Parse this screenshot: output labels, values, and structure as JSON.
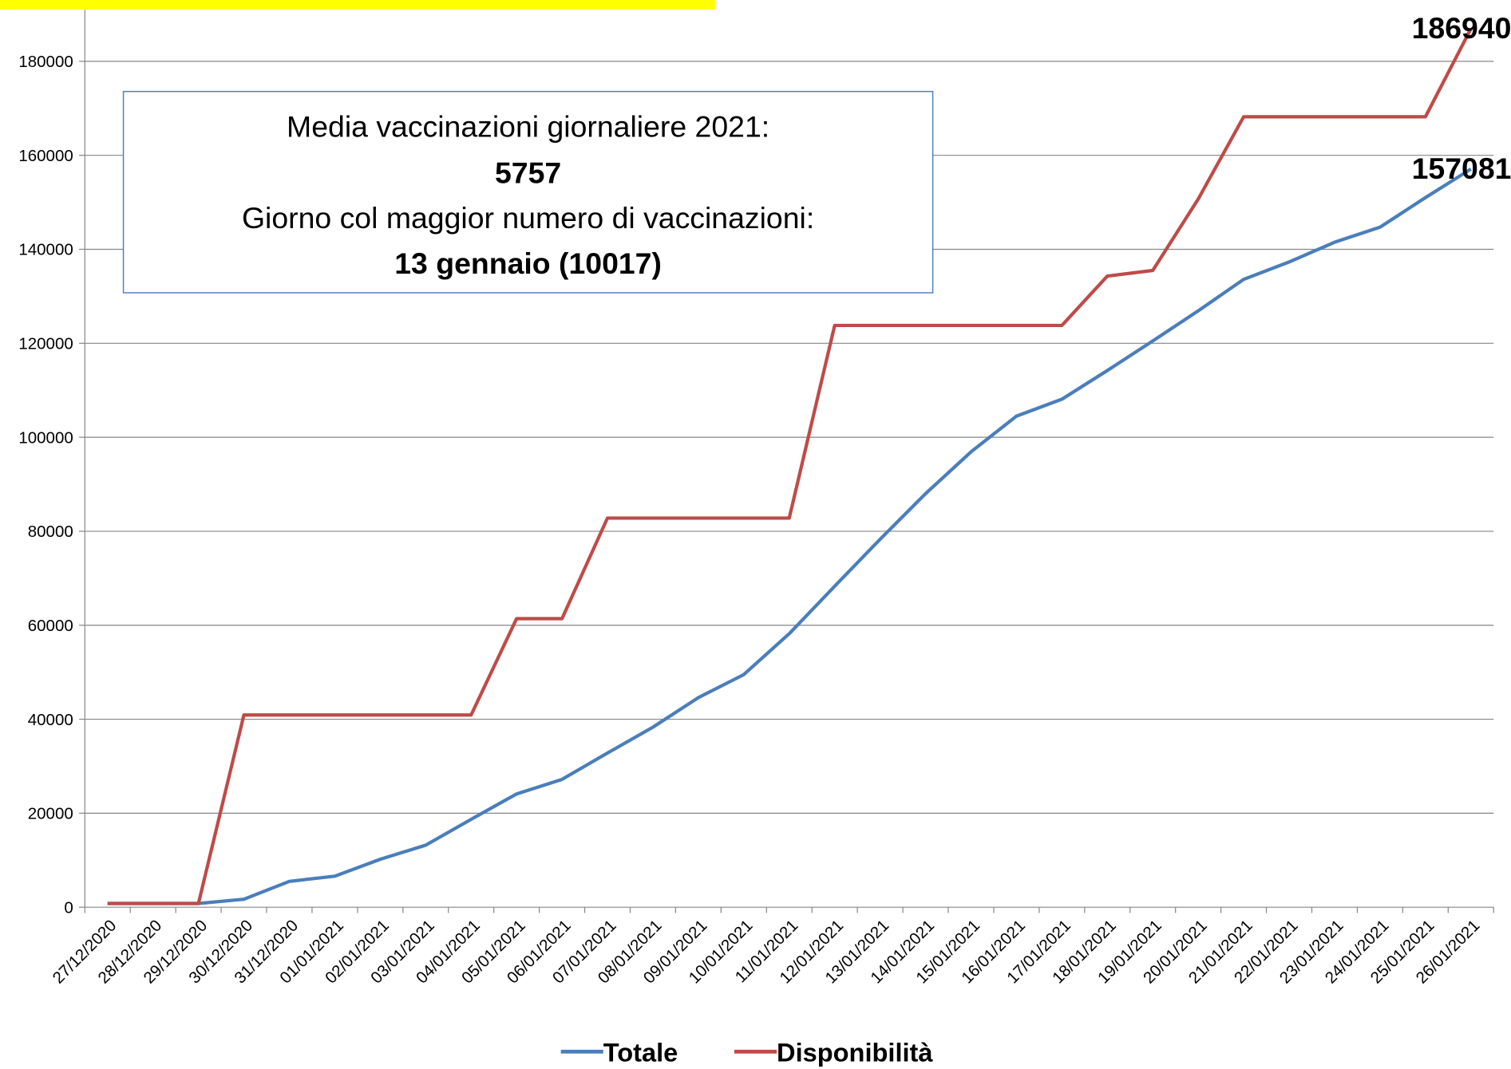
{
  "chart_data": {
    "type": "line",
    "categories": [
      "27/12/2020",
      "28/12/2020",
      "29/12/2020",
      "30/12/2020",
      "31/12/2020",
      "01/01/2021",
      "02/01/2021",
      "03/01/2021",
      "04/01/2021",
      "05/01/2021",
      "06/01/2021",
      "07/01/2021",
      "08/01/2021",
      "09/01/2021",
      "10/01/2021",
      "11/01/2021",
      "12/01/2021",
      "13/01/2021",
      "14/01/2021",
      "15/01/2021",
      "16/01/2021",
      "17/01/2021",
      "18/01/2021",
      "19/01/2021",
      "20/01/2021",
      "21/01/2021",
      "22/01/2021",
      "23/01/2021",
      "24/01/2021",
      "25/01/2021",
      "26/01/2021"
    ],
    "series": [
      {
        "name": "Totale",
        "color": "#4a7ebb",
        "values": [
          800,
          800,
          800,
          1700,
          5500,
          6600,
          10200,
          13200,
          18700,
          24100,
          27200,
          32800,
          38300,
          44600,
          49500,
          58200,
          68300,
          78300,
          88000,
          96900,
          104500,
          108100,
          114200,
          120500,
          126900,
          133600,
          137300,
          141500,
          144700,
          151000,
          157081
        ]
      },
      {
        "name": "Disponibilità",
        "color": "#be4b48",
        "values": [
          800,
          800,
          800,
          40900,
          40900,
          40900,
          40900,
          40900,
          40900,
          61400,
          61400,
          82800,
          82800,
          82800,
          82800,
          82800,
          123800,
          123800,
          123800,
          123800,
          123800,
          123800,
          134300,
          135500,
          150700,
          168200,
          168200,
          168200,
          168200,
          168200,
          186940
        ]
      }
    ],
    "ylim": [
      0,
      191000
    ],
    "yticks": [
      0,
      20000,
      40000,
      60000,
      80000,
      100000,
      120000,
      140000,
      160000,
      180000
    ],
    "grid": true,
    "legend": "bottom",
    "annotation": [
      "Media vaccinazioni giornaliere 2021:",
      "5757",
      "Giorno col maggior numero di vaccinazioni:",
      "13 gennaio (10017)"
    ]
  }
}
